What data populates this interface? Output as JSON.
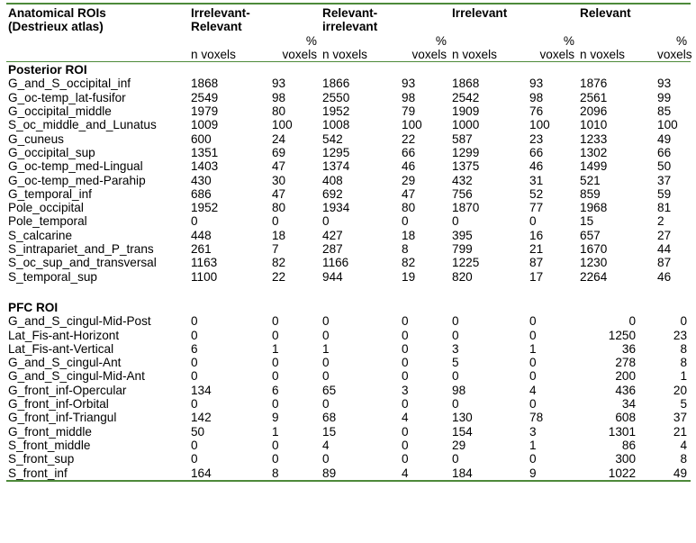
{
  "header": {
    "col0": [
      "Anatomical ROIs",
      "(Destrieux atlas)"
    ],
    "groups": [
      [
        "Irrelevant-",
        "Relevant"
      ],
      [
        "Relevant-",
        "irrelevant"
      ],
      [
        "Irrelevant",
        ""
      ],
      [
        "Relevant",
        ""
      ]
    ],
    "n_label": "n voxels",
    "pct_label": [
      "%",
      "voxels"
    ]
  },
  "sections": [
    {
      "title": "Posterior ROI",
      "rows": [
        [
          "G_and_S_occipital_inf",
          "1868",
          "93",
          "1866",
          "93",
          "1868",
          "93",
          "1876",
          "93"
        ],
        [
          "G_oc-temp_lat-fusifor",
          "2549",
          "98",
          "2550",
          "98",
          "2542",
          "98",
          "2561",
          "99"
        ],
        [
          "G_occipital_middle",
          "1979",
          "80",
          "1952",
          "79",
          "1909",
          "76",
          "2096",
          "85"
        ],
        [
          "S_oc_middle_and_Lunatus",
          "1009",
          "100",
          "1008",
          "100",
          "1000",
          "100",
          "1010",
          "100"
        ],
        [
          "G_cuneus",
          "600",
          "24",
          "542",
          "22",
          "587",
          "23",
          "1233",
          "49"
        ],
        [
          "G_occipital_sup",
          "1351",
          "69",
          "1295",
          "66",
          "1299",
          "66",
          "1302",
          "66"
        ],
        [
          "G_oc-temp_med-Lingual",
          "1403",
          "47",
          "1374",
          "46",
          "1375",
          "46",
          "1499",
          "50"
        ],
        [
          "G_oc-temp_med-Parahip",
          "430",
          "30",
          "408",
          "29",
          "432",
          "31",
          "521",
          "37"
        ],
        [
          "G_temporal_inf",
          "686",
          "47",
          "692",
          "47",
          "756",
          "52",
          "859",
          "59"
        ],
        [
          "Pole_occipital",
          "1952",
          "80",
          "1934",
          "80",
          "1870",
          "77",
          "1968",
          "81"
        ],
        [
          "Pole_temporal",
          "0",
          "0",
          "0",
          "0",
          "0",
          "0",
          "15",
          "2"
        ],
        [
          "S_calcarine",
          "448",
          "18",
          "427",
          "18",
          "395",
          "16",
          "657",
          "27"
        ],
        [
          "S_intraparіet_and_P_trans",
          "261",
          "7",
          "287",
          "8",
          "799",
          "21",
          "1670",
          "44"
        ],
        [
          "S_oc_sup_and_transversal",
          "1163",
          "82",
          "1166",
          "82",
          "1225",
          "87",
          "1230",
          "87"
        ],
        [
          "S_temporal_sup",
          "1100",
          "22",
          "944",
          "19",
          "820",
          "17",
          "2264",
          "46"
        ]
      ]
    },
    {
      "title": "PFC ROI",
      "rows": [
        [
          "G_and_S_cingul-Mid-Post",
          "0",
          "0",
          "0",
          "0",
          "0",
          "0",
          "0",
          "0"
        ],
        [
          "Lat_Fis-ant-Horizont",
          "0",
          "0",
          "0",
          "0",
          "0",
          "0",
          "1250",
          "23"
        ],
        [
          "Lat_Fis-ant-Vertical",
          "6",
          "1",
          "1",
          "0",
          "3",
          "1",
          "36",
          "8"
        ],
        [
          "G_and_S_cingul-Ant",
          "0",
          "0",
          "0",
          "0",
          "5",
          "0",
          "278",
          "8"
        ],
        [
          "G_and_S_cingul-Mid-Ant",
          "0",
          "0",
          "0",
          "0",
          "0",
          "0",
          "200",
          "1"
        ],
        [
          "G_front_inf-Opercular",
          "134",
          "6",
          "65",
          "3",
          "98",
          "4",
          "436",
          "20"
        ],
        [
          "G_front_inf-Orbital",
          "0",
          "0",
          "0",
          "0",
          "0",
          "0",
          "34",
          "5"
        ],
        [
          "G_front_inf-Triangul",
          "142",
          "9",
          "68",
          "4",
          "130",
          "78",
          "608",
          "37"
        ],
        [
          "G_front_middle",
          "50",
          "1",
          "15",
          "0",
          "154",
          "3",
          "1301",
          "21"
        ],
        [
          "S_front_middle",
          "0",
          "0",
          "4",
          "0",
          "29",
          "1",
          "86",
          "4"
        ],
        [
          "S_front_sup",
          "0",
          "0",
          "0",
          "0",
          "0",
          "0",
          "300",
          "8"
        ],
        [
          "S_front_inf",
          "164",
          "8",
          "89",
          "4",
          "184",
          "9",
          "1022",
          "49"
        ]
      ]
    }
  ]
}
